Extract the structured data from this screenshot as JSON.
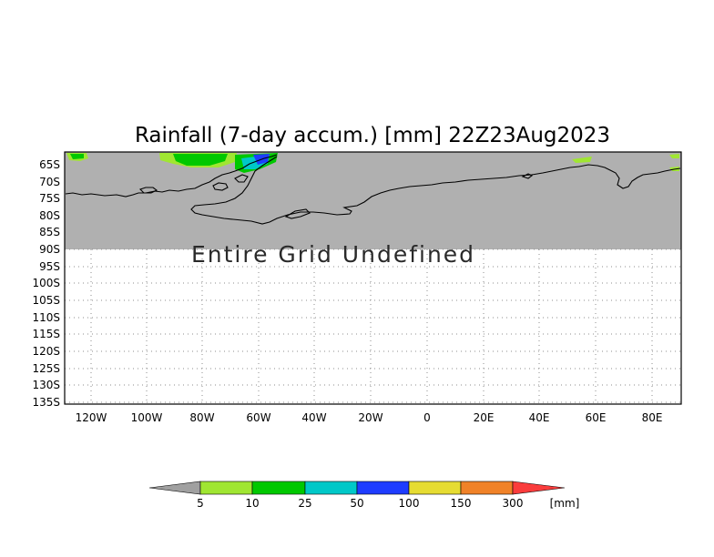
{
  "title": "Rainfall (7-day accum.) [mm] 22Z23Aug2023",
  "overlay_text": "Entire Grid Undefined",
  "map": {
    "lat_labels": [
      "65S",
      "70S",
      "75S",
      "80S",
      "85S",
      "90S",
      "95S",
      "100S",
      "105S",
      "110S",
      "115S",
      "120S",
      "125S",
      "130S",
      "135S"
    ],
    "lon_labels": [
      "120W",
      "100W",
      "80W",
      "60W",
      "40W",
      "20W",
      "0",
      "20E",
      "40E",
      "60E",
      "80E"
    ],
    "colors": {
      "land_undefined": "#b0b0b0",
      "background": "#ffffff",
      "frame": "#000000"
    }
  },
  "legend": {
    "unit": "[mm]",
    "ticks": [
      "5",
      "10",
      "25",
      "50",
      "100",
      "150",
      "300"
    ],
    "colors": [
      "#a0a0a0",
      "#a0e632",
      "#00c800",
      "#00c8c8",
      "#1e3cff",
      "#e6dc32",
      "#f08228",
      "#fa3c3c"
    ]
  }
}
